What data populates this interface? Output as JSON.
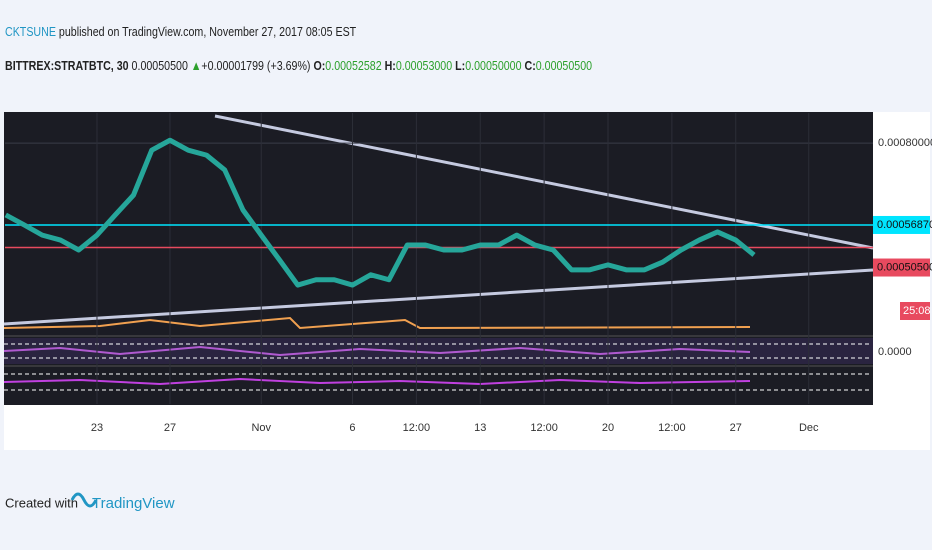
{
  "header": {
    "author": "CKTSUNE",
    "published": "published on TradingView.com, November 27, 2017 08:05 EST",
    "symbol": "BITTREX:STRATBTC, 30",
    "last": "0.00050500",
    "change": "+0.00001799 (+3.69%)",
    "open_label": "O:",
    "open": "0.00052582",
    "high_label": "H:",
    "high": "0.00053000",
    "low_label": "L:",
    "low": "0.00050000",
    "close_label": "C:",
    "close": "0.00050500"
  },
  "footer": {
    "text": "Created with",
    "brand": "TradingView"
  },
  "chart_data": {
    "type": "line",
    "x": [
      -5,
      -4,
      -3,
      -2,
      -1,
      0,
      1,
      2,
      3,
      4,
      5,
      6,
      7,
      8,
      9,
      10,
      11,
      12,
      13,
      14,
      15,
      16,
      17,
      18,
      19,
      20,
      21,
      22,
      23,
      24,
      25,
      26,
      27,
      28,
      29,
      30,
      31,
      32,
      33,
      34,
      35,
      36
    ],
    "series": [
      {
        "color": "#26a69a",
        "values": [
          0.000597,
          0.000569,
          0.00054,
          0.000526,
          0.000498,
          0.00054,
          0.000597,
          0.000653,
          0.00078,
          0.000808,
          0.00078,
          0.000766,
          0.000724,
          0.000611,
          0.00054,
          0.00047,
          0.000399,
          0.000414,
          0.000414,
          0.000399,
          0.000428,
          0.000414,
          0.000512,
          0.000512,
          0.000498,
          0.000498,
          0.000512,
          0.000512,
          0.00054,
          0.000512,
          0.000498,
          0.000442,
          0.000442,
          0.000456,
          0.000442,
          0.000442,
          0.000464,
          0.000498,
          0.000526,
          0.000549,
          0.000526,
          0.000484
        ]
      }
    ],
    "xlim": [
      -5.04,
      42.52
    ],
    "xticks": [
      {
        "value": 0,
        "label": "23"
      },
      {
        "value": 4,
        "label": "27"
      },
      {
        "value": 9,
        "label": "Nov"
      },
      {
        "value": 14,
        "label": "6"
      },
      {
        "value": 17.5,
        "label": "12:00"
      },
      {
        "value": 21,
        "label": "13"
      },
      {
        "value": 24.5,
        "label": "12:00"
      },
      {
        "value": 28,
        "label": "20"
      },
      {
        "value": 31.5,
        "label": "12:00"
      },
      {
        "value": 35,
        "label": "27"
      },
      {
        "value": 39,
        "label": "Dec"
      }
    ],
    "ylim": [
      0.000272,
      0.000885
    ],
    "yticks": [
      {
        "value": 0.0008,
        "label": "0.00080000"
      }
    ],
    "price_lines": [
      {
        "value": 0.0005687,
        "label": "0.00056870",
        "color": "#00e5ff"
      },
      {
        "value": 0.000505,
        "label": "0.00050500",
        "color": "#e84a5f"
      }
    ],
    "countdown": "25:08",
    "pane_labels": [
      "0.0000"
    ]
  }
}
